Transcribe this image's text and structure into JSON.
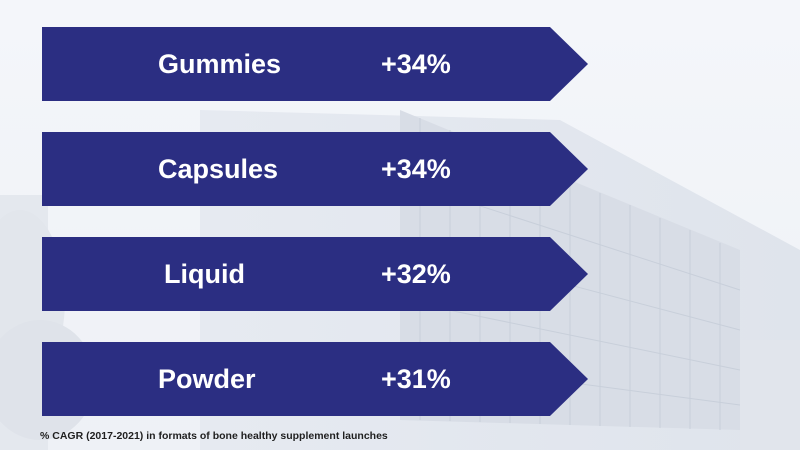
{
  "colors": {
    "arrow_fill": "#2b2e82",
    "text": "#ffffff",
    "footnote_text": "#1f1f1f"
  },
  "items": [
    {
      "label": "Gummies",
      "value": "+34%"
    },
    {
      "label": "Capsules",
      "value": "+34%"
    },
    {
      "label": "Liquid",
      "value": "+32%"
    },
    {
      "label": "Powder",
      "value": "+31%"
    }
  ],
  "footnote": "% CAGR (2017-2021) in formats of bone healthy supplement launches"
}
